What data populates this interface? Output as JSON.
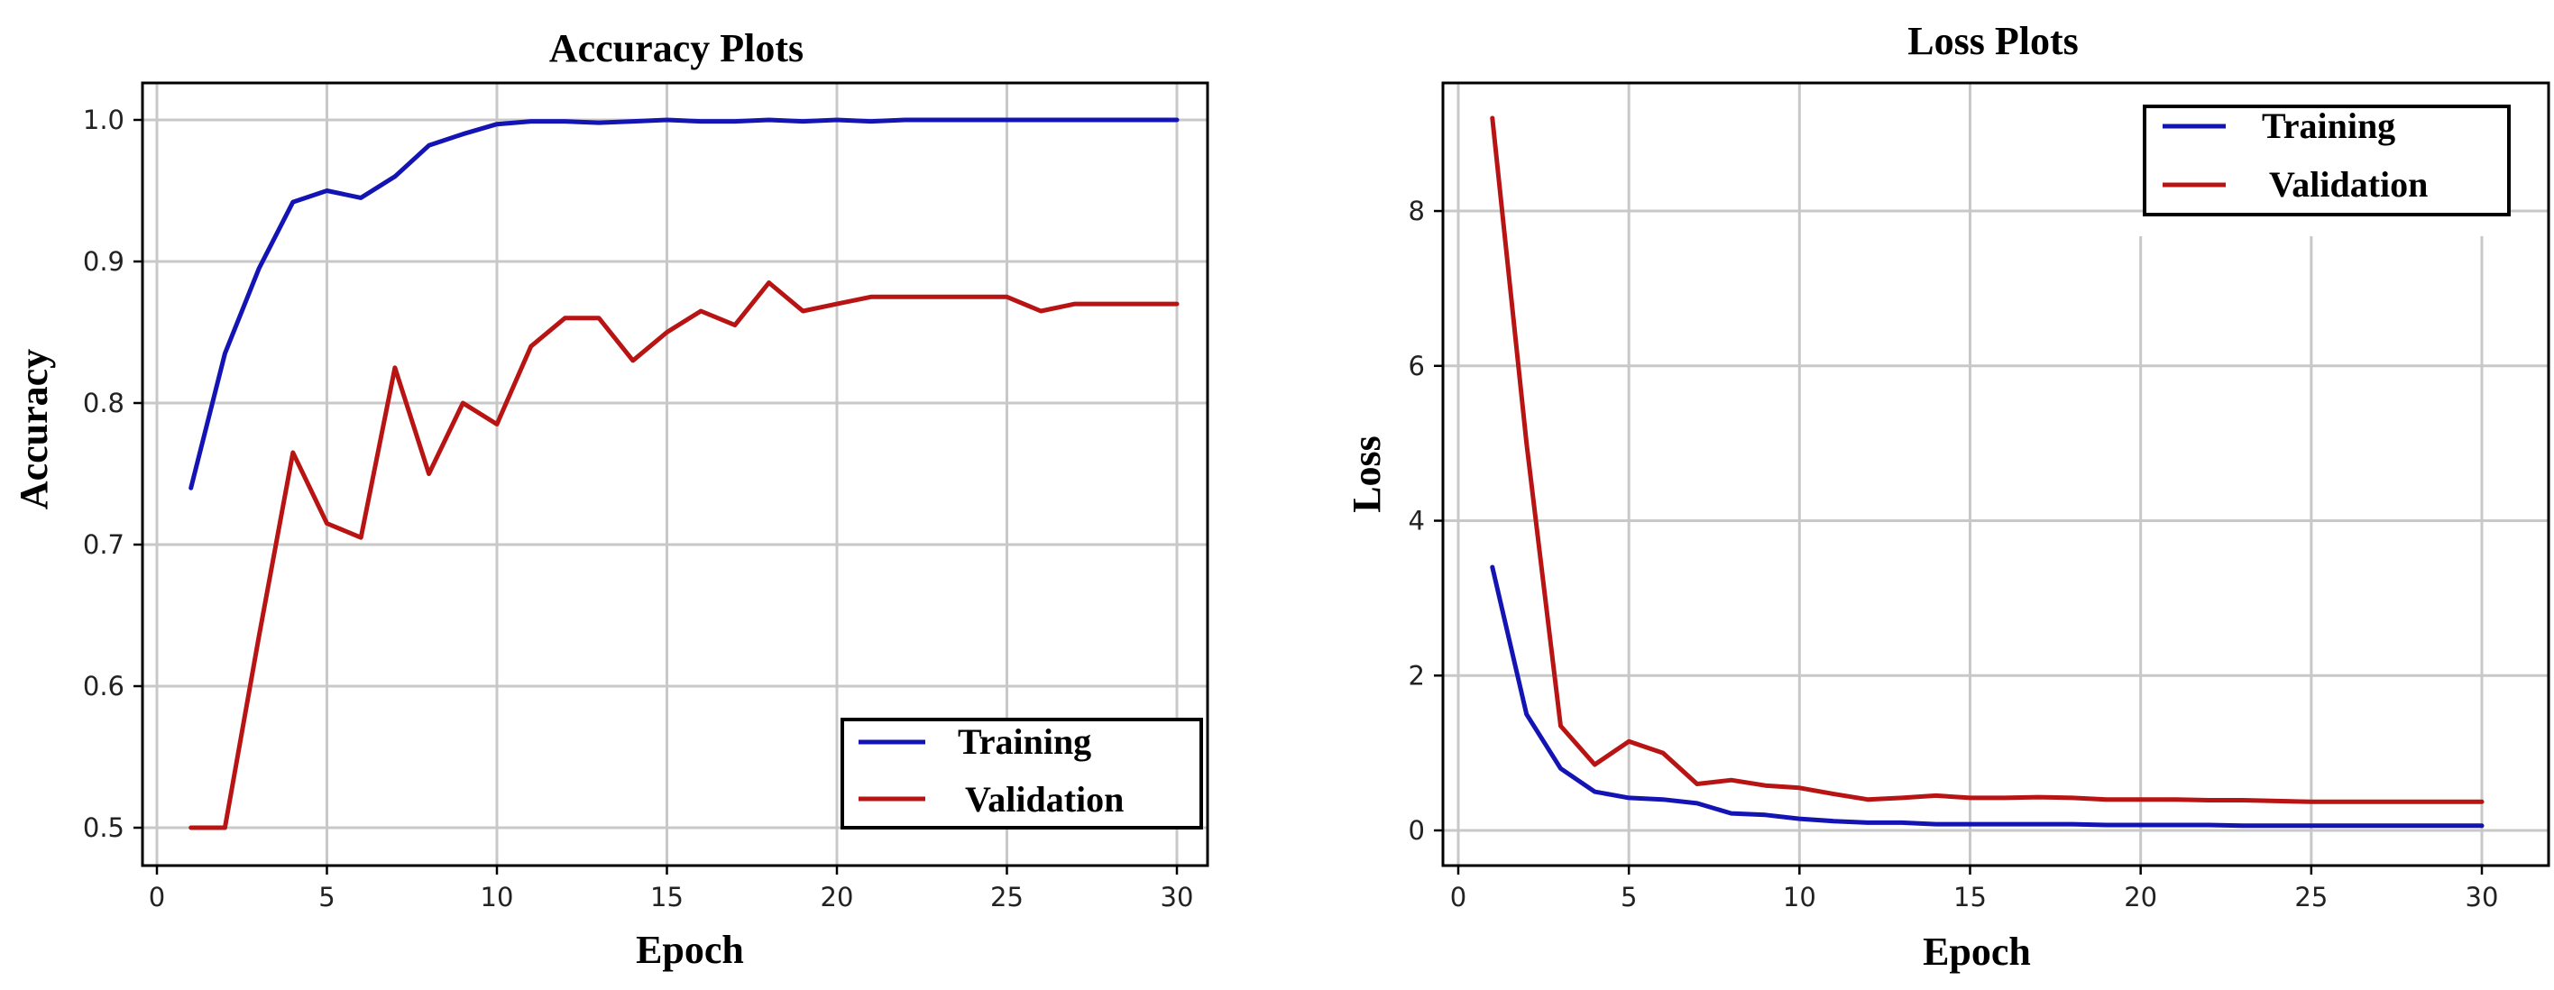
{
  "chart_data": [
    {
      "type": "line",
      "title": "Accuracy Plots",
      "xlabel": "Epoch",
      "ylabel": "Accuracy",
      "xlim": [
        0,
        30
      ],
      "ylim": [
        0.5,
        1.0
      ],
      "xticks": [
        0,
        5,
        10,
        15,
        20,
        25,
        30
      ],
      "yticks": [
        0.5,
        0.6,
        0.7,
        0.8,
        0.9,
        1.0
      ],
      "ytick_labels": [
        "0.5",
        "0.6",
        "0.7",
        "0.8",
        "0.9",
        "1.0"
      ],
      "grid": true,
      "legend_position": "lower-right",
      "x": [
        1,
        2,
        3,
        4,
        5,
        6,
        7,
        8,
        9,
        10,
        11,
        12,
        13,
        14,
        15,
        16,
        17,
        18,
        19,
        20,
        21,
        22,
        23,
        24,
        25,
        26,
        27,
        28,
        29,
        30
      ],
      "series": [
        {
          "name": "Training",
          "color": "#1414b4",
          "values": [
            0.74,
            0.835,
            0.895,
            0.942,
            0.95,
            0.945,
            0.96,
            0.982,
            0.99,
            0.997,
            0.999,
            0.999,
            0.998,
            0.999,
            1.0,
            0.999,
            0.999,
            1.0,
            0.999,
            1.0,
            0.999,
            1.0,
            1.0,
            1.0,
            1.0,
            1.0,
            1.0,
            1.0,
            1.0,
            1.0
          ]
        },
        {
          "name": "Validation",
          "color": "#b81414",
          "values": [
            0.5,
            0.5,
            0.635,
            0.765,
            0.715,
            0.705,
            0.825,
            0.75,
            0.8,
            0.785,
            0.84,
            0.86,
            0.86,
            0.83,
            0.85,
            0.865,
            0.855,
            0.885,
            0.865,
            0.87,
            0.875,
            0.875,
            0.875,
            0.875,
            0.875,
            0.865,
            0.87,
            0.87,
            0.87,
            0.87
          ]
        }
      ]
    },
    {
      "type": "line",
      "title": "Loss Plots",
      "xlabel": "Epoch",
      "ylabel": "Loss",
      "xlim": [
        0,
        30
      ],
      "ylim": [
        0,
        9.2
      ],
      "xticks": [
        0,
        5,
        10,
        15,
        20,
        25,
        30
      ],
      "yticks": [
        0,
        2,
        4,
        6,
        8
      ],
      "ytick_labels": [
        "0",
        "2",
        "4",
        "6",
        "8"
      ],
      "grid": true,
      "legend_position": "upper-right",
      "x": [
        1,
        2,
        3,
        4,
        5,
        6,
        7,
        8,
        9,
        10,
        11,
        12,
        13,
        14,
        15,
        16,
        17,
        18,
        19,
        20,
        21,
        22,
        23,
        24,
        25,
        26,
        27,
        28,
        29,
        30
      ],
      "series": [
        {
          "name": "Training",
          "color": "#1414b4",
          "values": [
            3.4,
            1.5,
            0.8,
            0.5,
            0.42,
            0.4,
            0.35,
            0.22,
            0.2,
            0.15,
            0.12,
            0.1,
            0.1,
            0.08,
            0.08,
            0.08,
            0.08,
            0.08,
            0.07,
            0.07,
            0.07,
            0.07,
            0.06,
            0.06,
            0.06,
            0.06,
            0.06,
            0.06,
            0.06,
            0.06
          ]
        },
        {
          "name": "Validation",
          "color": "#b81414",
          "values": [
            9.2,
            5.0,
            1.35,
            0.85,
            1.15,
            1.0,
            0.6,
            0.65,
            0.58,
            0.55,
            0.47,
            0.4,
            0.42,
            0.45,
            0.42,
            0.42,
            0.43,
            0.42,
            0.4,
            0.4,
            0.4,
            0.39,
            0.39,
            0.38,
            0.37,
            0.37,
            0.37,
            0.37,
            0.37,
            0.37
          ]
        }
      ]
    }
  ]
}
